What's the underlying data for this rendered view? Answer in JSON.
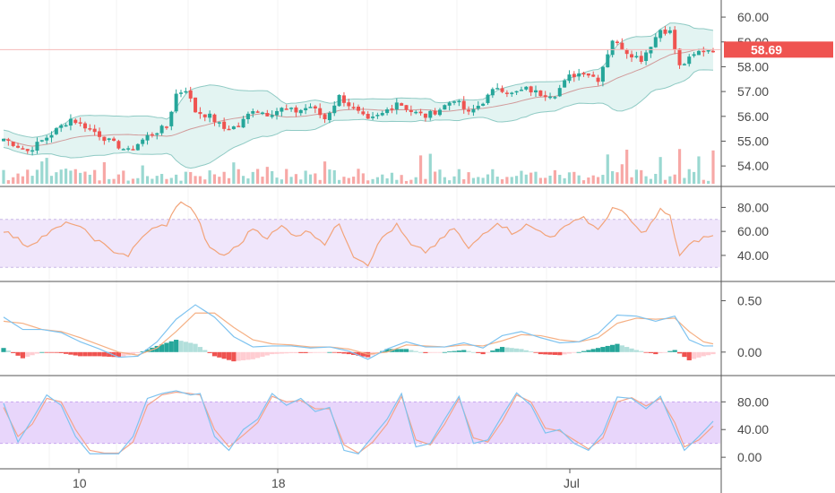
{
  "colors": {
    "up": "#26a69a",
    "down": "#ef5350",
    "volume_up": "#9ad8d1",
    "volume_down": "#f7a8a6",
    "bb_fill": "#e3f4f2",
    "bb_line": "#8fcac4",
    "bb_mid": "#d19a9a",
    "rsi_line": "#f2a47a",
    "rsi_band": "#f0e6fb",
    "macd_line": "#7ec3f0",
    "signal_line": "#f5b084",
    "hist_up_strong": "#26a69a",
    "hist_up_weak": "#b2dfdb",
    "hist_down_strong": "#ef5350",
    "hist_down_weak": "#ffcdd2",
    "stoch_k": "#7ec3f0",
    "stoch_d": "#f5a48a",
    "stoch_band": "#e8d6fb",
    "last_price_badge": "#ef5350",
    "grid": "#f3f3f3",
    "separator": "#555555"
  },
  "price_axis": {
    "ticks": [
      "60.00",
      "59.00",
      "58.00",
      "57.00",
      "56.00",
      "55.00",
      "54.00"
    ]
  },
  "last_price": {
    "label": "58.69",
    "value": 58.69
  },
  "rsi_axis": {
    "ticks": [
      "80.00",
      "60.00",
      "40.00"
    ]
  },
  "macd_axis": {
    "ticks": [
      "0.50",
      "0.00"
    ]
  },
  "stoch_axis": {
    "ticks": [
      "80.00",
      "40.00",
      "0.00"
    ]
  },
  "time_axis": {
    "labels": [
      "10",
      "18",
      "Jul"
    ]
  },
  "chart_data": [
    {
      "type": "candlestick",
      "panel": "price",
      "ylim": [
        53.5,
        60.4
      ],
      "bollinger_bands": true,
      "volume_overlay": true,
      "close_path": [
        [
          0,
          55.1
        ],
        [
          5,
          54.6
        ],
        [
          10,
          55.3
        ],
        [
          14,
          55.9
        ],
        [
          18,
          55.5
        ],
        [
          22,
          55.0
        ],
        [
          26,
          54.6
        ],
        [
          30,
          55.2
        ],
        [
          34,
          55.6
        ],
        [
          36,
          56.9
        ],
        [
          38,
          57.1
        ],
        [
          40,
          56.2
        ],
        [
          43,
          56.0
        ],
        [
          46,
          55.5
        ],
        [
          49,
          55.6
        ],
        [
          52,
          56.3
        ],
        [
          55,
          56.1
        ],
        [
          58,
          56.3
        ],
        [
          61,
          56.2
        ],
        [
          64,
          56.4
        ],
        [
          67,
          55.9
        ],
        [
          70,
          56.8
        ],
        [
          73,
          56.3
        ],
        [
          76,
          55.8
        ],
        [
          79,
          56.1
        ],
        [
          82,
          56.6
        ],
        [
          85,
          56.2
        ],
        [
          88,
          56.0
        ],
        [
          91,
          56.3
        ],
        [
          94,
          56.7
        ],
        [
          97,
          56.1
        ],
        [
          100,
          56.6
        ],
        [
          103,
          57.2
        ],
        [
          106,
          56.9
        ],
        [
          109,
          57.1
        ],
        [
          112,
          56.9
        ],
        [
          115,
          56.9
        ],
        [
          118,
          57.6
        ],
        [
          121,
          57.8
        ],
        [
          124,
          57.5
        ],
        [
          127,
          59.1
        ],
        [
          130,
          58.6
        ],
        [
          133,
          58.3
        ],
        [
          135,
          58.9
        ],
        [
          137,
          59.5
        ],
        [
          139,
          59.4
        ],
        [
          141,
          58.0
        ],
        [
          143,
          58.3
        ],
        [
          145,
          58.6
        ],
        [
          147,
          58.7
        ],
        [
          148,
          58.69
        ]
      ]
    },
    {
      "type": "line",
      "panel": "rsi",
      "ylim": [
        25,
        90
      ],
      "band": [
        30,
        70
      ],
      "path": [
        [
          0,
          61
        ],
        [
          5,
          48
        ],
        [
          10,
          60
        ],
        [
          14,
          68
        ],
        [
          18,
          57
        ],
        [
          22,
          45
        ],
        [
          26,
          40
        ],
        [
          30,
          60
        ],
        [
          34,
          66
        ],
        [
          37,
          86
        ],
        [
          40,
          75
        ],
        [
          43,
          45
        ],
        [
          46,
          40
        ],
        [
          49,
          48
        ],
        [
          52,
          63
        ],
        [
          55,
          55
        ],
        [
          58,
          64
        ],
        [
          61,
          57
        ],
        [
          64,
          60
        ],
        [
          67,
          50
        ],
        [
          70,
          67
        ],
        [
          73,
          40
        ],
        [
          76,
          33
        ],
        [
          79,
          55
        ],
        [
          82,
          65
        ],
        [
          85,
          48
        ],
        [
          88,
          43
        ],
        [
          91,
          52
        ],
        [
          94,
          63
        ],
        [
          97,
          45
        ],
        [
          100,
          58
        ],
        [
          103,
          68
        ],
        [
          106,
          59
        ],
        [
          109,
          65
        ],
        [
          112,
          60
        ],
        [
          115,
          55
        ],
        [
          118,
          68
        ],
        [
          121,
          72
        ],
        [
          124,
          60
        ],
        [
          127,
          80
        ],
        [
          130,
          73
        ],
        [
          133,
          58
        ],
        [
          135,
          66
        ],
        [
          137,
          78
        ],
        [
          139,
          72
        ],
        [
          141,
          40
        ],
        [
          143,
          48
        ],
        [
          145,
          53
        ],
        [
          147,
          56
        ],
        [
          148,
          56
        ]
      ]
    },
    {
      "type": "line",
      "panel": "macd",
      "ylim": [
        -0.15,
        0.6
      ],
      "series": [
        {
          "values_path": [
            [
              0,
              0.34
            ],
            [
              4,
              0.22
            ],
            [
              8,
              0.22
            ],
            [
              12,
              0.19
            ],
            [
              16,
              0.1
            ],
            [
              20,
              0.03
            ],
            [
              24,
              -0.05
            ],
            [
              28,
              -0.04
            ],
            [
              32,
              0.1
            ],
            [
              36,
              0.32
            ],
            [
              40,
              0.46
            ],
            [
              44,
              0.34
            ],
            [
              48,
              0.15
            ],
            [
              52,
              0.05
            ],
            [
              56,
              0.06
            ],
            [
              60,
              0.06
            ],
            [
              64,
              0.04
            ],
            [
              68,
              0.05
            ],
            [
              72,
              0.01
            ],
            [
              76,
              -0.07
            ],
            [
              80,
              0.03
            ],
            [
              84,
              0.1
            ],
            [
              88,
              0.05
            ],
            [
              92,
              0.05
            ],
            [
              96,
              0.09
            ],
            [
              100,
              0.04
            ],
            [
              104,
              0.16
            ],
            [
              108,
              0.2
            ],
            [
              112,
              0.14
            ],
            [
              116,
              0.09
            ],
            [
              120,
              0.1
            ],
            [
              124,
              0.18
            ],
            [
              128,
              0.36
            ],
            [
              132,
              0.35
            ],
            [
              136,
              0.3
            ],
            [
              140,
              0.35
            ],
            [
              143,
              0.12
            ],
            [
              146,
              0.06
            ],
            [
              148,
              0.06
            ]
          ]
        },
        {
          "values_path": [
            [
              0,
              0.3
            ],
            [
              4,
              0.28
            ],
            [
              8,
              0.22
            ],
            [
              12,
              0.2
            ],
            [
              16,
              0.14
            ],
            [
              20,
              0.07
            ],
            [
              24,
              0.0
            ],
            [
              28,
              -0.03
            ],
            [
              32,
              0.04
            ],
            [
              36,
              0.2
            ],
            [
              40,
              0.38
            ],
            [
              44,
              0.38
            ],
            [
              48,
              0.24
            ],
            [
              52,
              0.12
            ],
            [
              56,
              0.08
            ],
            [
              60,
              0.07
            ],
            [
              64,
              0.05
            ],
            [
              68,
              0.05
            ],
            [
              72,
              0.03
            ],
            [
              76,
              -0.02
            ],
            [
              80,
              0.0
            ],
            [
              84,
              0.07
            ],
            [
              88,
              0.06
            ],
            [
              92,
              0.05
            ],
            [
              96,
              0.07
            ],
            [
              100,
              0.06
            ],
            [
              104,
              0.11
            ],
            [
              108,
              0.17
            ],
            [
              112,
              0.16
            ],
            [
              116,
              0.12
            ],
            [
              120,
              0.1
            ],
            [
              124,
              0.14
            ],
            [
              128,
              0.28
            ],
            [
              132,
              0.33
            ],
            [
              136,
              0.32
            ],
            [
              140,
              0.33
            ],
            [
              143,
              0.2
            ],
            [
              146,
              0.1
            ],
            [
              148,
              0.08
            ]
          ]
        }
      ],
      "histogram": true
    },
    {
      "type": "line",
      "panel": "stochastic",
      "ylim": [
        -5,
        105
      ],
      "band": [
        20,
        80
      ],
      "series": [
        {
          "values_path": [
            [
              0,
              78
            ],
            [
              3,
              22
            ],
            [
              6,
              55
            ],
            [
              9,
              90
            ],
            [
              12,
              75
            ],
            [
              15,
              30
            ],
            [
              18,
              5
            ],
            [
              21,
              5
            ],
            [
              24,
              5
            ],
            [
              27,
              30
            ],
            [
              30,
              85
            ],
            [
              33,
              92
            ],
            [
              36,
              96
            ],
            [
              39,
              90
            ],
            [
              41,
              92
            ],
            [
              44,
              30
            ],
            [
              47,
              10
            ],
            [
              50,
              40
            ],
            [
              53,
              55
            ],
            [
              56,
              92
            ],
            [
              59,
              75
            ],
            [
              62,
              85
            ],
            [
              65,
              66
            ],
            [
              68,
              72
            ],
            [
              71,
              10
            ],
            [
              74,
              5
            ],
            [
              77,
              30
            ],
            [
              80,
              55
            ],
            [
              83,
              92
            ],
            [
              86,
              15
            ],
            [
              89,
              20
            ],
            [
              92,
              55
            ],
            [
              95,
              88
            ],
            [
              98,
              20
            ],
            [
              101,
              25
            ],
            [
              104,
              60
            ],
            [
              107,
              93
            ],
            [
              110,
              75
            ],
            [
              113,
              35
            ],
            [
              116,
              40
            ],
            [
              119,
              20
            ],
            [
              122,
              10
            ],
            [
              125,
              35
            ],
            [
              128,
              87
            ],
            [
              131,
              85
            ],
            [
              134,
              70
            ],
            [
              137,
              88
            ],
            [
              140,
              40
            ],
            [
              142,
              10
            ],
            [
              145,
              30
            ],
            [
              148,
              52
            ]
          ]
        },
        {
          "values_path": [
            [
              0,
              72
            ],
            [
              3,
              30
            ],
            [
              6,
              48
            ],
            [
              9,
              85
            ],
            [
              12,
              80
            ],
            [
              15,
              40
            ],
            [
              18,
              10
            ],
            [
              21,
              6
            ],
            [
              24,
              6
            ],
            [
              27,
              22
            ],
            [
              30,
              75
            ],
            [
              33,
              90
            ],
            [
              36,
              94
            ],
            [
              39,
              92
            ],
            [
              41,
              90
            ],
            [
              44,
              40
            ],
            [
              47,
              15
            ],
            [
              50,
              32
            ],
            [
              53,
              50
            ],
            [
              56,
              88
            ],
            [
              59,
              80
            ],
            [
              62,
              82
            ],
            [
              65,
              70
            ],
            [
              68,
              70
            ],
            [
              71,
              18
            ],
            [
              74,
              6
            ],
            [
              77,
              22
            ],
            [
              80,
              48
            ],
            [
              83,
              88
            ],
            [
              86,
              25
            ],
            [
              89,
              18
            ],
            [
              92,
              48
            ],
            [
              95,
              85
            ],
            [
              98,
              28
            ],
            [
              101,
              22
            ],
            [
              104,
              52
            ],
            [
              107,
              90
            ],
            [
              110,
              80
            ],
            [
              113,
              42
            ],
            [
              116,
              38
            ],
            [
              119,
              25
            ],
            [
              122,
              12
            ],
            [
              125,
              28
            ],
            [
              128,
              80
            ],
            [
              131,
              86
            ],
            [
              134,
              74
            ],
            [
              137,
              85
            ],
            [
              140,
              50
            ],
            [
              142,
              15
            ],
            [
              145,
              25
            ],
            [
              148,
              45
            ]
          ]
        }
      ]
    }
  ]
}
